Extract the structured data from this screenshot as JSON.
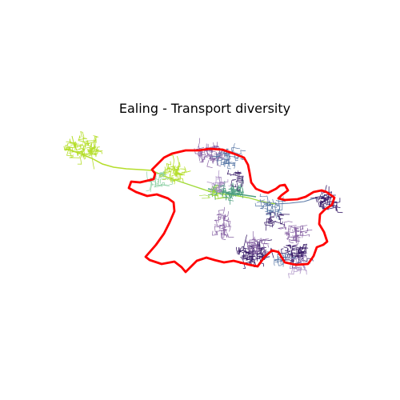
{
  "title": "Ealing - Transport diversity",
  "colors": {
    "boundary": "#ff0000",
    "yellow_green": "#b5de2b",
    "light_green": "#a0da39",
    "pale_green": "#8fd1a6",
    "teal_green": "#4f9f80",
    "slate_blue": "#5b7aa8",
    "dark_purple": "#3b1f6a",
    "mauve": "#8a66a6",
    "lavender": "#a98ec4"
  }
}
